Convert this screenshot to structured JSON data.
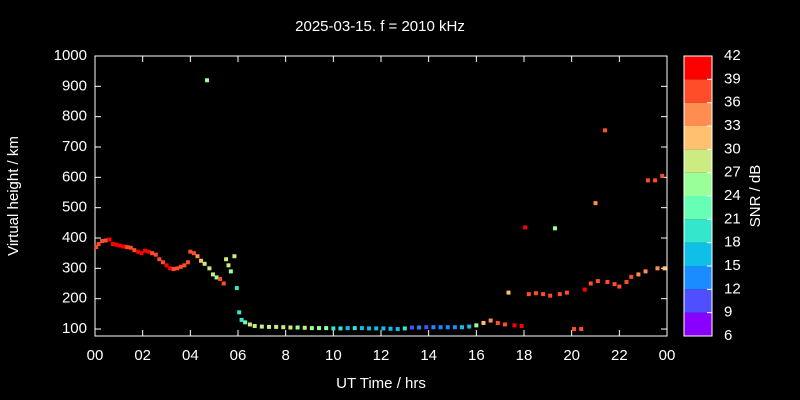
{
  "chart_data": {
    "type": "scatter",
    "title": "2025-03-15. f = 2010 kHz",
    "x_label": "UT Time / hrs",
    "y_label": "Virtual height / km",
    "xlim": [
      0,
      24
    ],
    "xticks": [
      {
        "value": 0,
        "label": "00"
      },
      {
        "value": 2,
        "label": "02"
      },
      {
        "value": 4,
        "label": "04"
      },
      {
        "value": 6,
        "label": "06"
      },
      8,
      10,
      12,
      14,
      16,
      18,
      20,
      22,
      {
        "value": 24,
        "label": "00"
      }
    ],
    "ylim": [
      77,
      1000
    ],
    "yticks": [
      100,
      200,
      300,
      400,
      500,
      600,
      700,
      800,
      900,
      1000
    ],
    "x": [
      0.05,
      0.15,
      0.3,
      0.45,
      0.6,
      0.75,
      0.9,
      1.05,
      1.2,
      1.35,
      1.5,
      1.65,
      1.8,
      1.95,
      2.1,
      2.25,
      2.4,
      2.55,
      2.7,
      2.85,
      3.0,
      3.15,
      3.3,
      3.45,
      3.6,
      3.75,
      3.9,
      4.0,
      4.15,
      4.3,
      4.45,
      4.6,
      4.7,
      4.8,
      4.95,
      5.1,
      5.25,
      5.4,
      5.5,
      5.6,
      5.7,
      5.85,
      5.95,
      6.05,
      6.15,
      6.3,
      6.5,
      6.7,
      7.0,
      7.3,
      7.6,
      7.9,
      8.2,
      8.5,
      8.8,
      9.1,
      9.4,
      9.7,
      10.0,
      10.3,
      10.6,
      10.9,
      11.2,
      11.5,
      11.8,
      12.1,
      12.4,
      12.7,
      13.0,
      13.3,
      13.6,
      13.9,
      14.2,
      14.5,
      14.8,
      15.1,
      15.4,
      15.7,
      16.0,
      16.3,
      16.6,
      16.9,
      17.2,
      17.35,
      17.6,
      17.9,
      18.05,
      18.2,
      18.5,
      18.8,
      19.1,
      19.3,
      19.5,
      19.8,
      20.1,
      20.4,
      20.55,
      20.8,
      21.0,
      21.1,
      21.4,
      21.5,
      21.8,
      22.0,
      22.3,
      22.5,
      22.8,
      23.1,
      23.2,
      23.5,
      23.6,
      23.8,
      23.9
    ],
    "values": [
      370,
      380,
      390,
      392,
      395,
      380,
      378,
      375,
      372,
      370,
      368,
      360,
      355,
      350,
      358,
      355,
      350,
      345,
      330,
      320,
      310,
      300,
      298,
      300,
      305,
      310,
      320,
      355,
      350,
      340,
      325,
      315,
      920,
      300,
      280,
      270,
      265,
      250,
      330,
      310,
      290,
      340,
      235,
      155,
      130,
      122,
      115,
      110,
      108,
      107,
      107,
      106,
      105,
      105,
      104,
      103,
      103,
      103,
      102,
      102,
      103,
      103,
      103,
      102,
      102,
      102,
      101,
      100,
      102,
      105,
      105,
      106,
      106,
      106,
      106,
      106,
      106,
      108,
      112,
      120,
      128,
      120,
      115,
      220,
      112,
      110,
      435,
      215,
      218,
      215,
      210,
      432,
      215,
      220,
      100,
      100,
      230,
      250,
      515,
      258,
      755,
      255,
      248,
      240,
      255,
      272,
      280,
      290,
      590,
      590,
      300,
      605,
      300
    ],
    "snr": [
      38,
      38,
      37,
      38,
      39,
      40,
      39,
      39,
      39,
      38,
      36,
      38,
      39,
      39,
      40,
      39,
      38,
      38,
      37,
      38,
      39,
      39,
      38,
      38,
      37,
      37,
      36,
      38,
      37,
      34,
      30,
      29,
      25,
      28,
      27,
      26,
      36,
      36,
      28,
      27,
      26,
      27,
      20,
      18,
      20,
      22,
      27,
      29,
      28,
      28,
      29,
      27,
      28,
      26,
      27,
      25,
      26,
      24,
      20,
      18,
      17,
      18,
      17,
      16,
      17,
      16,
      17,
      16,
      18,
      10,
      12,
      11,
      13,
      13,
      14,
      14,
      15,
      17,
      26,
      31,
      33,
      38,
      38,
      30,
      40,
      41,
      39,
      38,
      38,
      38,
      38,
      25,
      37,
      38,
      37,
      37,
      39,
      38,
      35,
      38,
      38,
      37,
      37,
      36,
      36,
      37,
      35,
      33,
      37,
      37,
      35,
      36,
      31
    ],
    "colorbar": {
      "label": "SNR / dB",
      "lim": [
        6,
        42
      ],
      "ticks": [
        6,
        9,
        12,
        15,
        18,
        21,
        24,
        27,
        30,
        33,
        36,
        39,
        42
      ],
      "colors": [
        "#8a00ff",
        "#4f4fff",
        "#1a8cff",
        "#0fbfe8",
        "#33e6cc",
        "#66ffb3",
        "#99ff99",
        "#cceb80",
        "#ffc070",
        "#ff8c50",
        "#ff4d2a",
        "#ff0000"
      ]
    }
  }
}
